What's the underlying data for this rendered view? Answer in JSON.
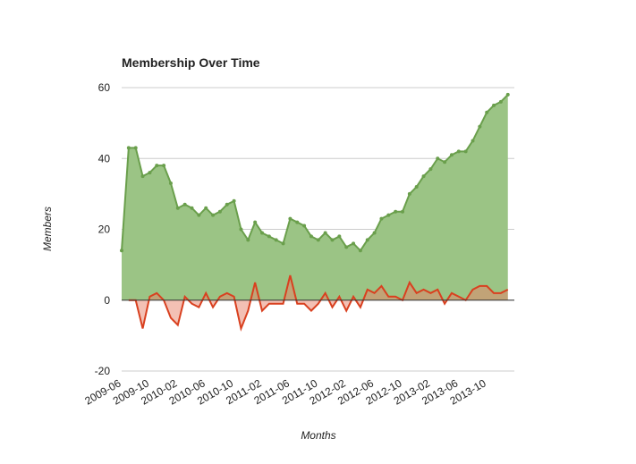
{
  "chart_data": {
    "type": "area",
    "title": "Membership Over Time",
    "xlabel": "Months",
    "ylabel": "Members",
    "categories": [
      "2009-06",
      null,
      null,
      null,
      "2009-10",
      null,
      null,
      null,
      "2010-02",
      null,
      null,
      null,
      "2010-06",
      null,
      null,
      null,
      "2010-10",
      null,
      null,
      null,
      "2011-02",
      null,
      null,
      null,
      "2011-06",
      null,
      null,
      null,
      "2011-10",
      null,
      null,
      null,
      "2012-02",
      null,
      null,
      null,
      "2012-06",
      null,
      null,
      null,
      "2012-10",
      null,
      null,
      null,
      "2013-02",
      null,
      null,
      null,
      "2013-06",
      null,
      null,
      null,
      "2013-10",
      null,
      null,
      null
    ],
    "series": [
      {
        "color": "#6a9f4c",
        "fill": "#9bc485",
        "values": [
          14,
          43,
          43,
          35,
          36,
          38,
          38,
          33,
          26,
          27,
          26,
          24,
          26,
          24,
          25,
          27,
          28,
          20,
          17,
          22,
          19,
          18,
          17,
          16,
          23,
          22,
          21,
          18,
          17,
          19,
          17,
          18,
          15,
          16,
          14,
          17,
          19,
          23,
          24,
          25,
          25,
          30,
          32,
          35,
          37,
          40,
          39,
          41,
          42,
          42,
          45,
          49,
          53,
          55,
          56,
          58
        ]
      },
      {
        "color": "#d9401f",
        "fill": "#e8826a",
        "values": [
          null,
          0,
          0,
          -8,
          1,
          2,
          0,
          -5,
          -7,
          1,
          -1,
          -2,
          2,
          -2,
          1,
          2,
          1,
          -8,
          -3,
          5,
          -3,
          -1,
          -1,
          -1,
          7,
          -1,
          -1,
          -3,
          -1,
          2,
          -2,
          1,
          -3,
          1,
          -2,
          3,
          2,
          4,
          1,
          1,
          0,
          5,
          2,
          3,
          2,
          3,
          -1,
          2,
          1,
          0,
          3,
          4,
          4,
          2,
          2,
          3
        ]
      }
    ],
    "ylim": [
      -20,
      60
    ],
    "yticks": [
      -20,
      0,
      20,
      40,
      60
    ],
    "grid": true
  }
}
